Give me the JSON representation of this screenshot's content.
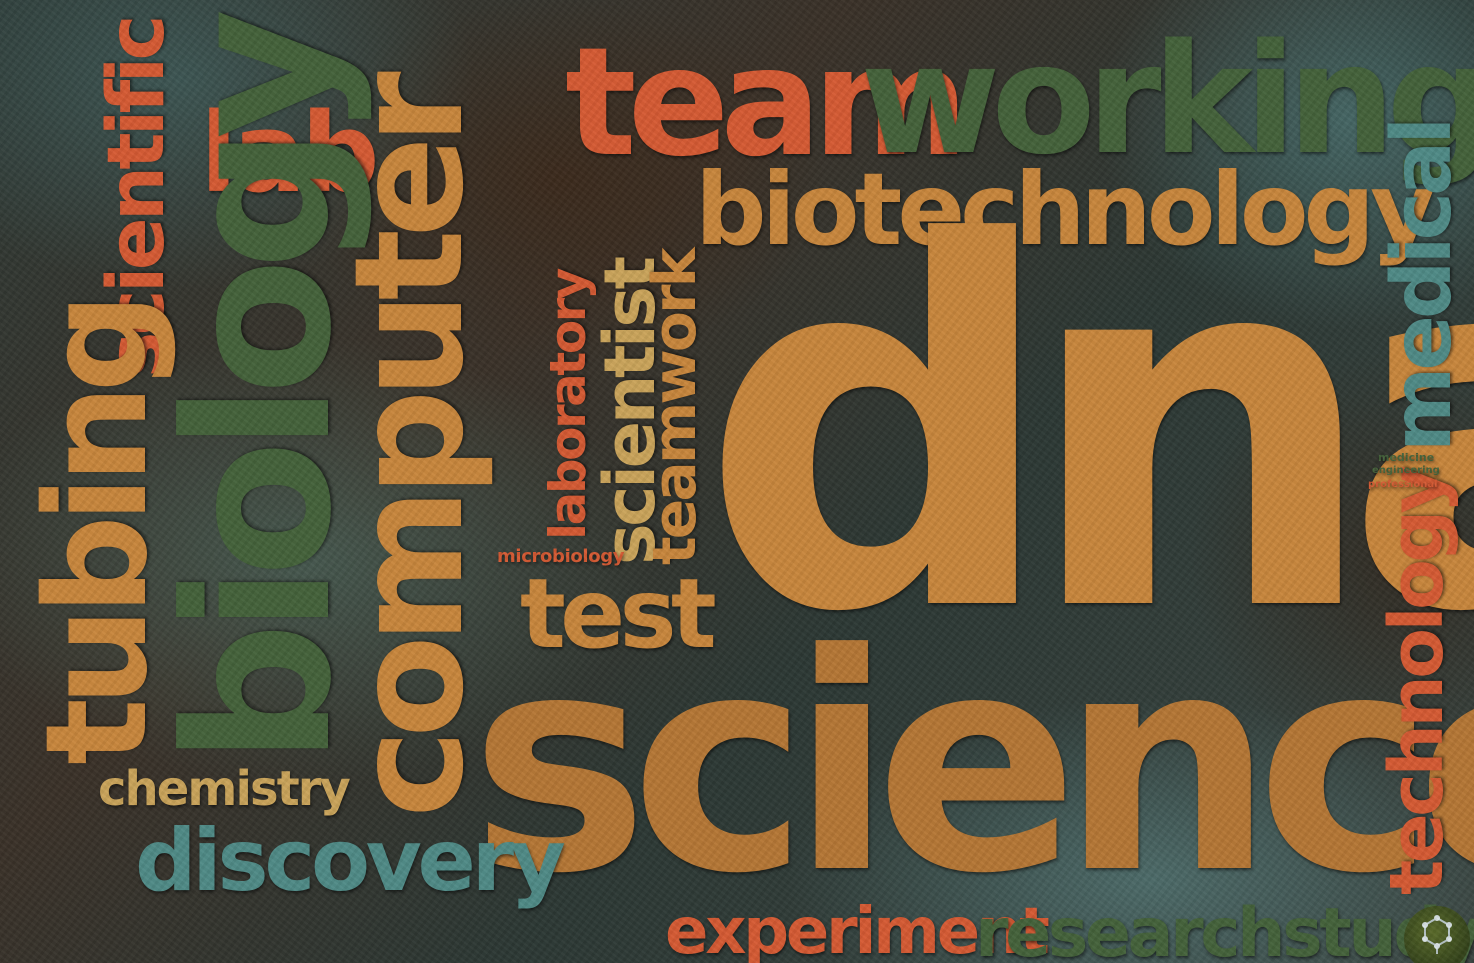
{
  "words": {
    "team": "team",
    "working": "working",
    "biotechnology": "biotechnology",
    "dna": "dna",
    "science": "science",
    "lab": "lab",
    "scientific": "scientific",
    "biology": "biology",
    "computer": "computer",
    "tubing": "tubing",
    "laboratory": "laboratory",
    "scientist": "scientist",
    "teamwork": "teamwork",
    "microbiology": "microbiology",
    "test": "test",
    "chemistry": "chemistry",
    "discovery": "discovery",
    "experiment": "experiment",
    "research_study": "researchstudy",
    "medical": "medical",
    "technology": "technology",
    "medicine": "medicine",
    "engineering": "engineering",
    "professional": "professional"
  },
  "icons": {
    "logo": "molecule-icon"
  },
  "colors": {
    "orange": "#c8863c",
    "red": "#d55a33",
    "green": "#44623a",
    "teal": "#4f8a86"
  }
}
